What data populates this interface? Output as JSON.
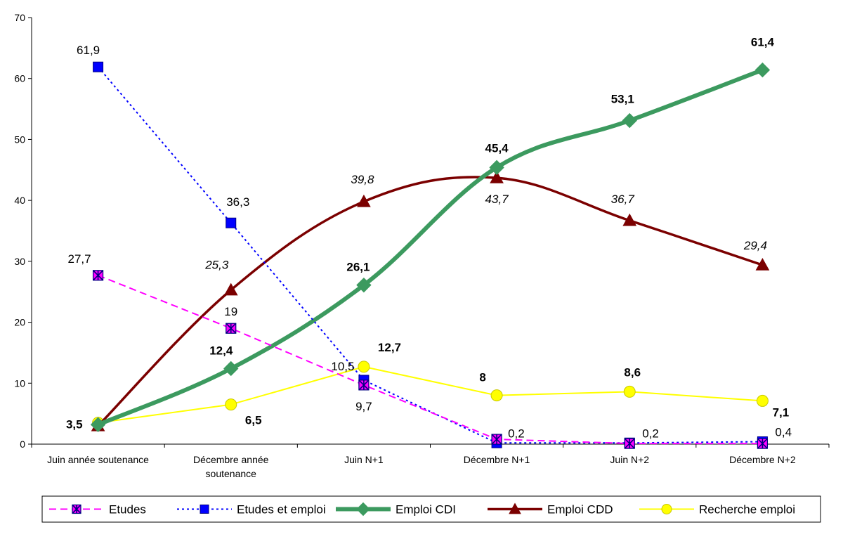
{
  "chart_data": {
    "type": "line",
    "title": "",
    "xlabel": "",
    "ylabel": "",
    "ylim": [
      0,
      70
    ],
    "yticks": [
      0,
      10,
      20,
      30,
      40,
      50,
      60,
      70
    ],
    "grid": false,
    "legend_position": "bottom",
    "categories": [
      [
        "Juin année soutenance"
      ],
      [
        "Décembre année",
        "soutenance"
      ],
      [
        "Juin N+1"
      ],
      [
        "Décembre N+1"
      ],
      [
        "Juin N+2"
      ],
      [
        "Décembre N+2"
      ]
    ],
    "series": [
      {
        "name": "Etudes",
        "color": "#ff00ff",
        "marker": "square-star",
        "line": "dashed",
        "smooth": false,
        "values": [
          27.7,
          19,
          9.7,
          0.8,
          0.1,
          0.1
        ],
        "labels": [
          "27,7",
          "19",
          "9,7",
          "",
          "",
          ""
        ],
        "label_style": "normal"
      },
      {
        "name": "Etudes et emploi",
        "color": "#0000ff",
        "marker": "square",
        "line": "dotted",
        "smooth": false,
        "values": [
          61.9,
          36.3,
          10.5,
          0.2,
          0.2,
          0.4
        ],
        "labels": [
          "61,9",
          "36,3",
          "10,5",
          "0,2",
          "0,2",
          "0,4"
        ],
        "label_style": "normal"
      },
      {
        "name": "Emploi CDI",
        "color": "#3c9a5f",
        "marker": "diamond",
        "line": "thick",
        "smooth": true,
        "values": [
          3.2,
          12.4,
          26.1,
          45.4,
          53.1,
          61.4
        ],
        "labels": [
          "",
          "12,4",
          "26,1",
          "45,4",
          "53,1",
          "61,4"
        ],
        "label_style": "bold"
      },
      {
        "name": "Emploi CDD",
        "color": "#7b0000",
        "marker": "triangle",
        "line": "solid",
        "smooth": true,
        "values": [
          3.0,
          25.3,
          39.8,
          43.7,
          36.7,
          29.4
        ],
        "labels": [
          "",
          "25,3",
          "39,8",
          "43,7",
          "36,7",
          "29,4"
        ],
        "label_style": "italic"
      },
      {
        "name": "Recherche emploi",
        "color": "#ffff00",
        "marker": "circle",
        "line": "solid",
        "smooth": false,
        "values": [
          3.5,
          6.5,
          12.7,
          8,
          8.6,
          7.1
        ],
        "labels": [
          "3,5",
          "6,5",
          "12,7",
          "8",
          "8,6",
          "7,1"
        ],
        "label_style": "bold"
      }
    ]
  }
}
